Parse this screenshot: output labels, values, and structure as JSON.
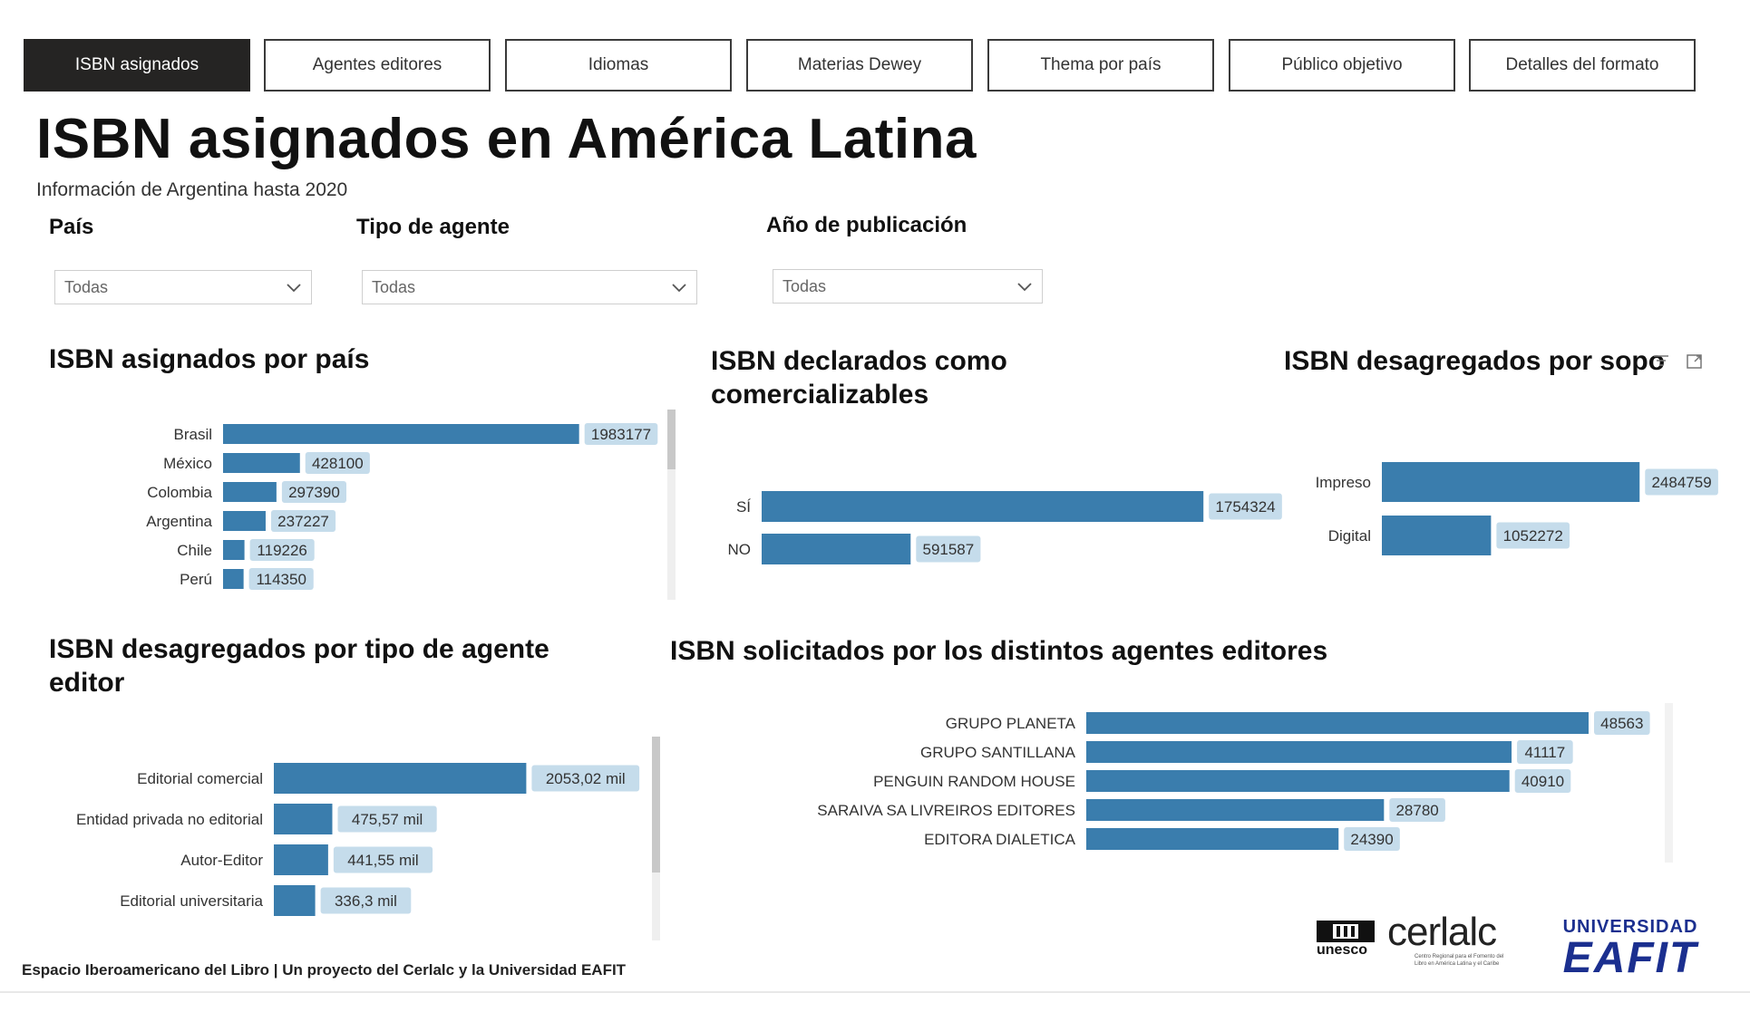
{
  "tabs": [
    {
      "label": "ISBN asignados",
      "active": true
    },
    {
      "label": "Agentes editores",
      "active": false
    },
    {
      "label": "Idiomas",
      "active": false
    },
    {
      "label": "Materias Dewey",
      "active": false
    },
    {
      "label": "Thema por país",
      "active": false
    },
    {
      "label": "Público objetivo",
      "active": false
    },
    {
      "label": "Detalles del formato",
      "active": false
    }
  ],
  "header": {
    "title": "ISBN asignados en América Latina",
    "subtitle": "Información de Argentina hasta 2020"
  },
  "filters": [
    {
      "label": "País",
      "value": "Todas"
    },
    {
      "label": "Tipo de agente",
      "value": "Todas"
    },
    {
      "label": "Año de publicación",
      "value": "Todas"
    }
  ],
  "colors": {
    "bar": "#3a7dad",
    "label_bg": "#c5dceb",
    "tab_active": "#252423",
    "eafit_blue": "#1b2f8f"
  },
  "chart_data": [
    {
      "id": "por_pais",
      "type": "bar",
      "orientation": "horizontal",
      "title": "ISBN asignados por país",
      "categories": [
        "Brasil",
        "México",
        "Colombia",
        "Argentina",
        "Chile",
        "Perú"
      ],
      "values": [
        1983177,
        428100,
        297390,
        237227,
        119226,
        114350
      ],
      "labels": [
        "1983177",
        "428100",
        "297390",
        "237227",
        "119226",
        "114350"
      ],
      "xlim": [
        0,
        2000000
      ]
    },
    {
      "id": "comercializables",
      "type": "bar",
      "orientation": "horizontal",
      "title": "ISBN declarados como comercializables",
      "categories": [
        "SÍ",
        "NO"
      ],
      "values": [
        1754324,
        591587
      ],
      "labels": [
        "1754324",
        "591587"
      ],
      "xlim": [
        0,
        1750000
      ]
    },
    {
      "id": "soporte",
      "type": "bar",
      "orientation": "horizontal",
      "title": "ISBN desagregados por sopo",
      "categories": [
        "Impreso",
        "Digital"
      ],
      "values": [
        2484759,
        1052272
      ],
      "labels": [
        "2484759",
        "1052272"
      ],
      "xlim": [
        0,
        2500000
      ]
    },
    {
      "id": "tipo_agente",
      "type": "bar",
      "orientation": "horizontal",
      "title": "ISBN desagregados por tipo de agente editor",
      "categories": [
        "Editorial comercial",
        "Entidad privada no editorial",
        "Autor-Editor",
        "Editorial universitaria"
      ],
      "values": [
        2053020,
        475570,
        441550,
        336300
      ],
      "labels": [
        "2053,02 mil",
        "475,57 mil",
        "441,55 mil",
        "336,3 mil"
      ],
      "xlim": [
        0,
        2050000
      ]
    },
    {
      "id": "agentes_editores",
      "type": "bar",
      "orientation": "horizontal",
      "title": "ISBN solicitados por los distintos agentes editores",
      "categories": [
        "GRUPO PLANETA",
        "GRUPO SANTILLANA",
        "PENGUIN RANDOM HOUSE",
        "SARAIVA SA LIVREIROS EDITORES",
        "EDITORA DIALETICA"
      ],
      "values": [
        48563,
        41117,
        40910,
        28780,
        24390
      ],
      "labels": [
        "48563",
        "41117",
        "40910",
        "28780",
        "24390"
      ],
      "xlim": [
        0,
        48563
      ]
    }
  ],
  "logos": {
    "unesco": "unesco",
    "cerlalc": "cerlalc",
    "cerlalc_caption": "Centro Regional para el Fomento del Libro en América Latina y el Caribe",
    "eafit_top": "UNIVERSIDAD",
    "eafit_main": "EAFIT"
  },
  "icons": [
    "filter-icon",
    "focus-mode-icon",
    "chevron-down-icon"
  ],
  "footer": {
    "text": "Espacio Iberoamericano del Libro | Un proyecto del Cerlalc y la Universidad EAFIT"
  }
}
